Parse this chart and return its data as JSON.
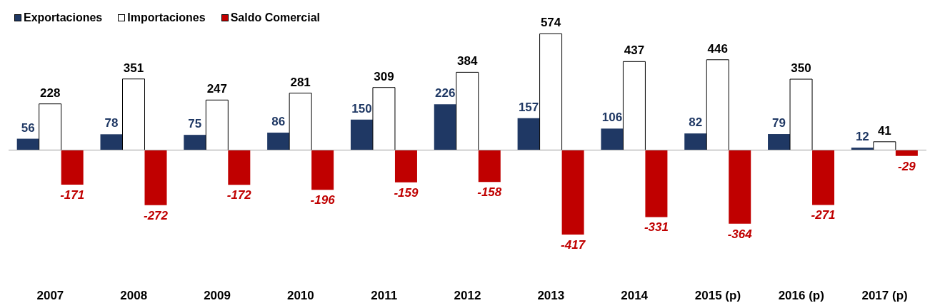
{
  "chart_data": {
    "type": "bar",
    "categories": [
      "2007",
      "2008",
      "2009",
      "2010",
      "2011",
      "2012",
      "2013",
      "2014",
      "2015 (p)",
      "2016 (p)",
      "2017 (p)"
    ],
    "series": [
      {
        "name": "Exportaciones",
        "color": "#1f3864",
        "values": [
          56,
          78,
          75,
          86,
          150,
          226,
          157,
          106,
          82,
          79,
          12
        ]
      },
      {
        "name": "Importaciones",
        "color": "#ffffff",
        "values": [
          228,
          351,
          247,
          281,
          309,
          384,
          574,
          437,
          446,
          350,
          41
        ]
      },
      {
        "name": "Saldo Comercial",
        "color": "#c00000",
        "values": [
          -171,
          -272,
          -172,
          -196,
          -159,
          -158,
          -417,
          -331,
          -364,
          -271,
          -29
        ]
      }
    ],
    "data_labels": true,
    "legend": "top left",
    "grid": false
  }
}
